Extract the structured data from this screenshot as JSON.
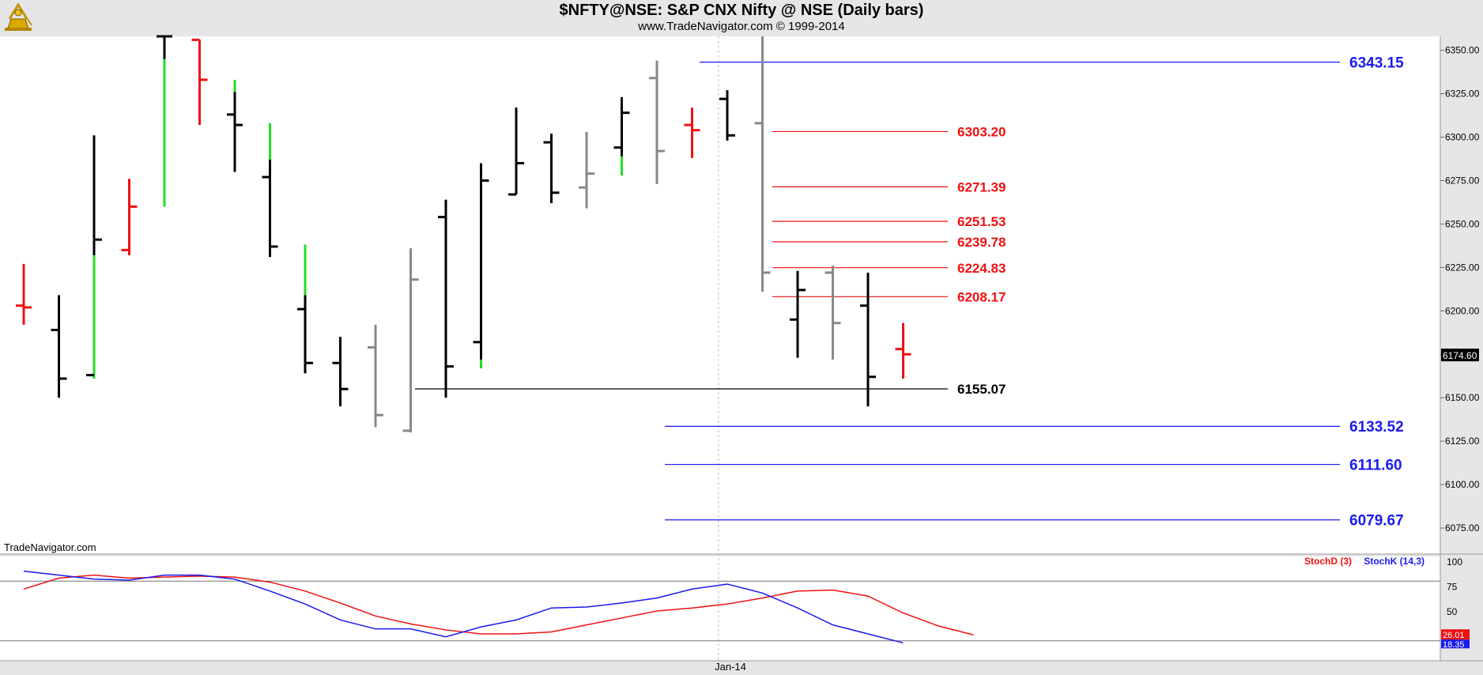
{
  "header": {
    "title": "$NFTY@NSE:  S&P CNX Nifty @ NSE  (Daily bars)",
    "subtitle": "www.TradeNavigator.com © 1999-2014"
  },
  "watermark": "TradeNavigator.com",
  "colors": {
    "background": "#ffffff",
    "panel_bg": "#e6e6e6",
    "up_bar": "#000000",
    "down_bar": "#000000",
    "gray_bar": "#888888",
    "red_bar": "#ee1111",
    "green_segment": "#22dd22",
    "blue_level": "#1a1aee",
    "red_level": "#ee1111",
    "black_level": "#000000",
    "stoch_d": "#ee1111",
    "stoch_k": "#1a1aee"
  },
  "chart_data": [
    {
      "type": "ohlc",
      "title": "$NFTY@NSE:  S&P CNX Nifty @ NSE  (Daily bars)",
      "ylim": [
        6060,
        6358
      ],
      "y_ticks": [
        "6350.00",
        "6325.00",
        "6300.00",
        "6275.00",
        "6250.00",
        "6225.00",
        "6200.00",
        "6175.00",
        "6150.00",
        "6125.00",
        "6100.00",
        "6075.00"
      ],
      "x_label": "Jan-14",
      "last_price": "6174.60",
      "bars": [
        {
          "o": 6203,
          "h": 6227,
          "l": 6192,
          "c": 6202,
          "color": "red"
        },
        {
          "o": 6189,
          "h": 6209,
          "l": 6150,
          "c": 6161,
          "color": "black"
        },
        {
          "o": 6163,
          "h": 6301,
          "l": 6161,
          "c": 6241,
          "color": "black",
          "green": [
            6161,
            6232
          ]
        },
        {
          "o": 6235,
          "h": 6276,
          "l": 6232,
          "c": 6260,
          "color": "red"
        },
        {
          "o": 6358,
          "h": 6358,
          "l": 6260,
          "c": 6358,
          "color": "black",
          "green": [
            6260,
            6345
          ]
        },
        {
          "o": 6356,
          "h": 6356,
          "l": 6307,
          "c": 6333,
          "color": "red"
        },
        {
          "o": 6313,
          "h": 6333,
          "l": 6280,
          "c": 6307,
          "color": "black",
          "green": [
            6326,
            6333
          ]
        },
        {
          "o": 6277,
          "h": 6308,
          "l": 6231,
          "c": 6237,
          "color": "black",
          "green": [
            6287,
            6308
          ]
        },
        {
          "o": 6201,
          "h": 6238,
          "l": 6164,
          "c": 6170,
          "color": "black",
          "green": [
            6209,
            6238
          ]
        },
        {
          "o": 6170,
          "h": 6185,
          "l": 6145,
          "c": 6155,
          "color": "black"
        },
        {
          "o": 6179,
          "h": 6192,
          "l": 6133,
          "c": 6140,
          "color": "gray"
        },
        {
          "o": 6131,
          "h": 6236,
          "l": 6130,
          "c": 6218,
          "color": "gray"
        },
        {
          "o": 6254,
          "h": 6264,
          "l": 6150,
          "c": 6168,
          "color": "black"
        },
        {
          "o": 6182,
          "h": 6285,
          "l": 6167,
          "c": 6275,
          "color": "black",
          "green": [
            6167,
            6172
          ]
        },
        {
          "o": 6267,
          "h": 6317,
          "l": 6267,
          "c": 6285,
          "color": "black"
        },
        {
          "o": 6297,
          "h": 6302,
          "l": 6262,
          "c": 6268,
          "color": "black"
        },
        {
          "o": 6271,
          "h": 6303,
          "l": 6259,
          "c": 6279,
          "color": "gray"
        },
        {
          "o": 6294,
          "h": 6323,
          "l": 6278,
          "c": 6314,
          "color": "black",
          "green": [
            6278,
            6289
          ]
        },
        {
          "o": 6334,
          "h": 6344,
          "l": 6273,
          "c": 6292,
          "color": "gray"
        },
        {
          "o": 6307,
          "h": 6317,
          "l": 6288,
          "c": 6304,
          "color": "red"
        },
        {
          "o": 6322,
          "h": 6327,
          "l": 6298,
          "c": 6301,
          "color": "black"
        },
        {
          "o": 6308,
          "h": 6358,
          "l": 6211,
          "c": 6222,
          "color": "gray"
        },
        {
          "o": 6195,
          "h": 6223,
          "l": 6173,
          "c": 6212,
          "color": "black"
        },
        {
          "o": 6222,
          "h": 6226,
          "l": 6172,
          "c": 6193,
          "color": "gray"
        },
        {
          "o": 6203,
          "h": 6222,
          "l": 6145,
          "c": 6162,
          "color": "black"
        },
        {
          "o": 6178,
          "h": 6193,
          "l": 6161,
          "c": 6175,
          "color": "red"
        }
      ],
      "levels": [
        {
          "value": 6343.15,
          "label": "6343.15",
          "color": "blue"
        },
        {
          "value": 6303.2,
          "label": "6303.20",
          "color": "red"
        },
        {
          "value": 6271.39,
          "label": "6271.39",
          "color": "red"
        },
        {
          "value": 6251.53,
          "label": "6251.53",
          "color": "red"
        },
        {
          "value": 6239.78,
          "label": "6239.78",
          "color": "red"
        },
        {
          "value": 6224.83,
          "label": "6224.83",
          "color": "red"
        },
        {
          "value": 6208.17,
          "label": "6208.17",
          "color": "red"
        },
        {
          "value": 6155.07,
          "label": "6155.07",
          "color": "black"
        },
        {
          "value": 6133.52,
          "label": "6133.52",
          "color": "blue"
        },
        {
          "value": 6111.6,
          "label": "6111.60",
          "color": "blue"
        },
        {
          "value": 6079.67,
          "label": "6079.67",
          "color": "blue"
        }
      ]
    },
    {
      "type": "line",
      "ylim": [
        0,
        100
      ],
      "y_ticks": [
        "100",
        "75",
        "50",
        "25"
      ],
      "reference_lines": [
        80,
        20
      ],
      "last_values": {
        "d": "26.01",
        "k": "18.35"
      },
      "series": [
        {
          "name": "StochD (3)",
          "color": "red",
          "values": [
            72,
            83,
            86,
            83,
            84,
            85,
            84,
            79,
            70,
            58,
            45,
            37,
            31,
            27,
            27,
            29,
            36,
            43,
            50,
            53,
            57,
            63,
            70,
            71,
            65,
            48,
            35,
            26
          ]
        },
        {
          "name": "StochK (14,3)",
          "color": "blue",
          "values": [
            90,
            86,
            82,
            81,
            86,
            86,
            82,
            70,
            57,
            41,
            32,
            32,
            24,
            34,
            41,
            53,
            54,
            58,
            63,
            72,
            77,
            68,
            53,
            36,
            27,
            18
          ]
        }
      ]
    }
  ]
}
